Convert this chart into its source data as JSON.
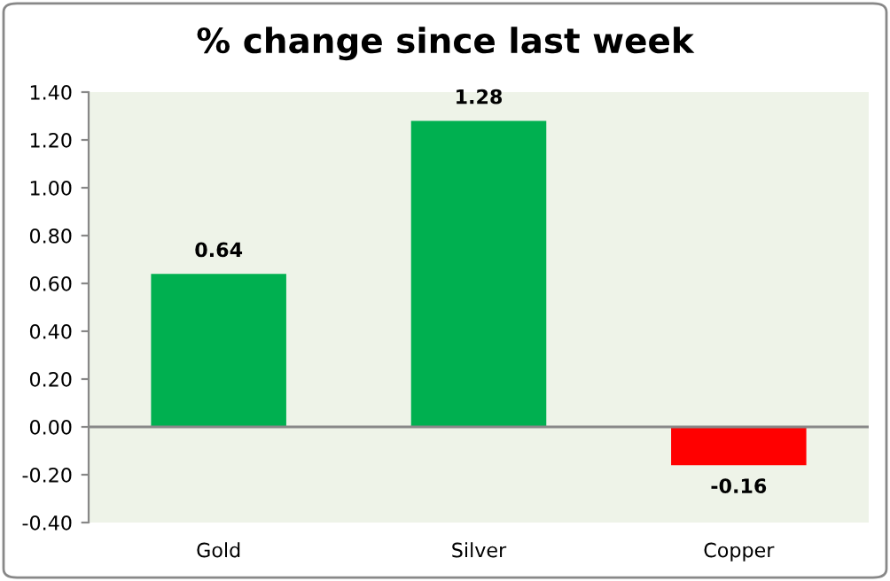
{
  "chart_data": {
    "type": "bar",
    "title": "% change since last week",
    "categories": [
      "Gold",
      "Silver",
      "Copper"
    ],
    "values": [
      0.64,
      1.28,
      -0.16
    ],
    "colors": [
      "#00b050",
      "#00b050",
      "#ff0000"
    ],
    "ylim": [
      -0.4,
      1.4
    ],
    "yticks": [
      {
        "value": -0.4,
        "label": "-0.40"
      },
      {
        "value": -0.2,
        "label": "-0.20"
      },
      {
        "value": 0,
        "label": "0.00"
      },
      {
        "value": 0.2,
        "label": "0.20"
      },
      {
        "value": 0.4,
        "label": "0.40"
      },
      {
        "value": 0.6,
        "label": "0.60"
      },
      {
        "value": 0.8,
        "label": "0.80"
      },
      {
        "value": 1.0,
        "label": "1.00"
      },
      {
        "value": 1.2,
        "label": "1.20"
      },
      {
        "value": 1.4,
        "label": "1.40"
      }
    ],
    "ref_lines": [
      {
        "axis": "y",
        "value": 0,
        "color": "#888888"
      }
    ],
    "data_labels": true,
    "grid": false,
    "legend": false
  }
}
